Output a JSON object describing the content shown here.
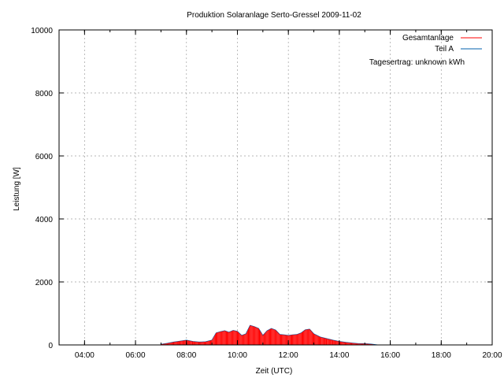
{
  "chart_data": {
    "type": "area",
    "title": "Produktion Solaranlage Serto-Gressel 2009-11-02",
    "xlabel": "Zeit (UTC)",
    "ylabel": "Leistung [W]",
    "xlim": [
      "03:00",
      "20:00"
    ],
    "ylim": [
      0,
      10000
    ],
    "x_ticks": [
      "04:00",
      "06:00",
      "08:00",
      "10:00",
      "12:00",
      "14:00",
      "16:00",
      "18:00",
      "20:00"
    ],
    "y_ticks": [
      "0",
      "2000",
      "4000",
      "6000",
      "8000",
      "10000"
    ],
    "grid": true,
    "legend_position": "top-right",
    "annotation": "Tagesertrag: unknown kWh",
    "series": [
      {
        "name": "Gesamtanlage",
        "color": "#ff0000",
        "x": [
          "07:00",
          "07:15",
          "07:30",
          "07:45",
          "08:00",
          "08:15",
          "08:30",
          "08:45",
          "09:00",
          "09:10",
          "09:20",
          "09:30",
          "09:40",
          "09:50",
          "10:00",
          "10:10",
          "10:20",
          "10:30",
          "10:40",
          "10:50",
          "11:00",
          "11:10",
          "11:20",
          "11:30",
          "11:40",
          "11:50",
          "12:00",
          "12:10",
          "12:20",
          "12:30",
          "12:40",
          "12:50",
          "13:00",
          "13:15",
          "13:30",
          "13:45",
          "14:00",
          "14:15",
          "14:30",
          "14:45",
          "15:00",
          "15:15",
          "15:30"
        ],
        "values": [
          20,
          50,
          90,
          120,
          150,
          110,
          90,
          100,
          150,
          380,
          420,
          450,
          400,
          460,
          430,
          300,
          350,
          620,
          580,
          520,
          300,
          450,
          520,
          470,
          330,
          320,
          300,
          320,
          330,
          380,
          480,
          500,
          350,
          250,
          200,
          150,
          110,
          80,
          60,
          40,
          40,
          25,
          0
        ]
      },
      {
        "name": "Teil A",
        "color": "#0060ad",
        "x": [
          "07:00",
          "07:15",
          "07:30",
          "07:45",
          "08:00",
          "08:15",
          "08:30",
          "08:45",
          "09:00",
          "09:10",
          "09:20",
          "09:30",
          "09:40",
          "09:50",
          "10:00",
          "10:10",
          "10:20",
          "10:30",
          "10:40",
          "10:50",
          "11:00",
          "11:10",
          "11:20",
          "11:30",
          "11:40",
          "11:50",
          "12:00",
          "12:10",
          "12:20",
          "12:30",
          "12:40",
          "12:50",
          "13:00",
          "13:15",
          "13:30",
          "13:45",
          "14:00",
          "14:15",
          "14:30",
          "14:45",
          "15:00",
          "15:15",
          "15:30"
        ],
        "values": [
          20,
          50,
          90,
          120,
          150,
          110,
          90,
          100,
          150,
          380,
          420,
          450,
          400,
          460,
          430,
          300,
          350,
          620,
          580,
          520,
          300,
          450,
          520,
          470,
          330,
          320,
          300,
          320,
          330,
          380,
          480,
          500,
          350,
          250,
          200,
          150,
          110,
          80,
          60,
          40,
          40,
          25,
          0
        ]
      }
    ]
  }
}
